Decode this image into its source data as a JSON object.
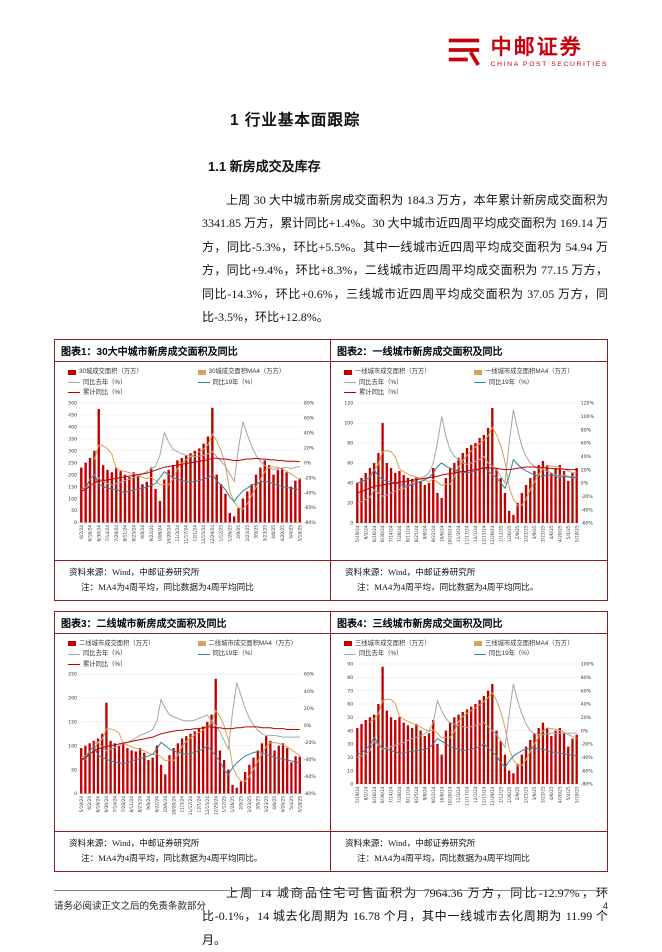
{
  "brand": {
    "name_cn": "中邮证券",
    "name_en": "CHINA POST SECURITIES",
    "accent": "#C8000A"
  },
  "headings": {
    "h1": "1 行业基本面跟踪",
    "h2": "1.1 新房成交及库存"
  },
  "paragraphs": {
    "p1": "上周 30 大中城市新房成交面积为 184.3 万方，本年累计新房成交面积为 3341.85 万方，累计同比+1.4%。30 大中城市近四周平均成交面积为 169.14 万方，同比-5.3%，环比+5.5%。其中一线城市近四周平均成交面积为 54.94 万方，同比+9.4%，环比+8.3%，二线城市近四周平均成交面积为 77.15 万方，同比-14.3%，环比+0.6%，三线城市近四周平均成交面积为 37.05 万方，同比-3.5%，环比+12.8%。",
    "p2": "上周 14 城商品住宅可售面积为 7964.36 万方，同比-12.97%，环比-0.1%，14 城去化周期为 16.78 个月，其中一线城市去化周期为 11.99 个月。"
  },
  "footer": {
    "disclaimer": "请务必阅读正文之后的免责条款部分",
    "page": "4"
  },
  "chart_data": [
    {
      "type": "bar",
      "title": "图表1：30大中城市新房成交面积及同比",
      "source": "资料来源：Wind，中邮证券研究所",
      "note": "注：MA4为4周平均，同比数据为4周平均同比",
      "x_labels": [
        "6/2/24",
        "6/16/24",
        "6/30/24",
        "7/14/24",
        "7/28/24",
        "8/11/24",
        "8/25/24",
        "9/8/24",
        "9/22/24",
        "10/6/24",
        "10/20/24",
        "11/3/24",
        "11/17/24",
        "12/1/24",
        "12/15/24",
        "12/29/24",
        "1/12/25",
        "1/26/25",
        "2/9/25",
        "2/23/25",
        "3/9/25",
        "3/23/25",
        "4/6/25",
        "4/20/25",
        "5/4/25",
        "5/18/25"
      ],
      "label_every": 2,
      "ylim_left": [
        0,
        500
      ],
      "ytick_left": 50,
      "ylim_right": [
        -80,
        80
      ],
      "ytick_right": 20,
      "bars": {
        "name": "30城成交面积（万方）",
        "color": "#C00000",
        "values": [
          230,
          250,
          270,
          300,
          475,
          240,
          220,
          210,
          230,
          215,
          200,
          190,
          210,
          195,
          160,
          170,
          230,
          140,
          90,
          180,
          220,
          240,
          260,
          270,
          280,
          290,
          300,
          310,
          330,
          360,
          480,
          200,
          160,
          120,
          40,
          25,
          60,
          100,
          130,
          160,
          200,
          230,
          260,
          240,
          200,
          220,
          230,
          210,
          150,
          175,
          184
        ]
      },
      "ma4": {
        "name": "30城成交面积MA4（万方）",
        "color": "#D8A158"
      },
      "lines": [
        {
          "name": "同比去年（%）",
          "color": "#A6A6A6",
          "values": [
            -35,
            -33,
            -30,
            -28,
            -20,
            -25,
            -28,
            -30,
            -28,
            -26,
            -24,
            -22,
            -20,
            -18,
            -15,
            -12,
            -8,
            -5,
            10,
            40,
            28,
            18,
            15,
            12,
            10,
            9,
            8,
            9,
            10,
            12,
            15,
            8,
            2,
            -5,
            -15,
            -25,
            20,
            55,
            38,
            22,
            10,
            2,
            -4,
            -7,
            -9,
            -8,
            -7,
            -6,
            -8,
            -6,
            -5
          ]
        },
        {
          "name": "同比19年（%）",
          "color": "#31859C",
          "values": [
            -35,
            -34,
            -22,
            -16,
            -28,
            -32,
            -34,
            -35,
            -36,
            -38,
            -40,
            -38,
            -36,
            -35,
            -34,
            -33,
            -30,
            -28,
            -20,
            -12,
            -16,
            -20,
            -22,
            -24,
            -25,
            -26,
            -25,
            -24,
            -22,
            -20,
            -16,
            -24,
            -30,
            -36,
            -46,
            -52,
            -44,
            -38,
            -34,
            -30,
            -28,
            -26,
            -25,
            -26,
            -28,
            -30,
            -32,
            -33,
            -34,
            -35,
            -36
          ]
        },
        {
          "name": "累计同比（%）",
          "color": "#C00000",
          "values": [
            -38,
            -36,
            -31,
            -27,
            -25,
            -24,
            -23,
            -22,
            -21,
            -20,
            -19,
            -18,
            -17,
            -16,
            -15,
            -14,
            -12,
            -10,
            -8,
            -6,
            -5,
            -4,
            -3,
            -2,
            -1,
            0,
            1,
            2,
            3,
            4,
            6,
            6,
            5,
            5,
            4,
            3,
            3,
            4,
            5,
            5,
            6,
            5,
            5,
            4,
            4,
            3,
            3,
            2,
            2,
            2,
            1.4
          ]
        }
      ]
    },
    {
      "type": "bar",
      "title": "图表2：一线城市新房成交面积及同比",
      "source": "资料来源：Wind，中邮证券研究所",
      "note": "注：MA4为4周平均，同比数据为4周平均同比。",
      "x_labels": [
        "5/19/24",
        "6/2/24",
        "6/16/24",
        "6/30/24",
        "7/14/24",
        "7/28/24",
        "8/11/24",
        "8/25/24",
        "9/8/24",
        "9/22/24",
        "10/6/24",
        "10/20/24",
        "11/3/24",
        "11/17/24",
        "12/1/24",
        "12/15/24",
        "12/29/24",
        "1/12/25",
        "1/26/25",
        "2/9/25",
        "2/23/25",
        "3/9/25",
        "3/23/25",
        "4/6/25",
        "4/20/25",
        "5/4/25",
        "5/18/25"
      ],
      "label_every": 2,
      "ylim_left": [
        0,
        120
      ],
      "ytick_left": 20,
      "ylim_right": [
        -60,
        120
      ],
      "ytick_right": 20,
      "bars": {
        "name": "一线城市成交面积（万方）",
        "color": "#C00000",
        "values": [
          40,
          45,
          50,
          55,
          60,
          70,
          100,
          60,
          55,
          50,
          52,
          48,
          45,
          44,
          46,
          42,
          38,
          40,
          55,
          30,
          25,
          45,
          55,
          60,
          65,
          70,
          75,
          78,
          80,
          85,
          88,
          95,
          115,
          55,
          45,
          30,
          12,
          8,
          20,
          30,
          38,
          45,
          52,
          58,
          62,
          58,
          50,
          55,
          58,
          52,
          42,
          50,
          55
        ]
      },
      "ma4": {
        "name": "一线城市成交面积MA4（万方）",
        "color": "#D8A158"
      },
      "lines": [
        {
          "name": "同比去年（%）",
          "color": "#A6A6A6",
          "values": [
            -30,
            -28,
            -25,
            -22,
            -10,
            -15,
            -20,
            -18,
            -15,
            -12,
            -10,
            -8,
            -5,
            0,
            5,
            8,
            10,
            15,
            30,
            60,
            100,
            70,
            50,
            40,
            35,
            30,
            28,
            30,
            32,
            35,
            40,
            30,
            25,
            20,
            10,
            0,
            60,
            110,
            80,
            55,
            40,
            30,
            25,
            22,
            20,
            18,
            15,
            12,
            10,
            12,
            10,
            9,
            9
          ]
        },
        {
          "name": "同比19年（%）",
          "color": "#31859C",
          "values": [
            0,
            2,
            5,
            8,
            20,
            10,
            5,
            3,
            2,
            0,
            -2,
            -4,
            -5,
            -3,
            0,
            2,
            5,
            8,
            15,
            25,
            30,
            25,
            22,
            20,
            18,
            16,
            15,
            16,
            18,
            20,
            25,
            18,
            12,
            8,
            0,
            -8,
            10,
            35,
            28,
            22,
            18,
            15,
            12,
            10,
            10,
            12,
            12,
            10,
            8,
            10,
            9,
            8,
            8
          ]
        },
        {
          "name": "累计同比（%）",
          "color": "#C00000",
          "values": [
            -15,
            -13,
            -10,
            -8,
            -5,
            -4,
            -3,
            -2,
            -1,
            0,
            1,
            2,
            3,
            4,
            5,
            6,
            7,
            8,
            9,
            10,
            12,
            13,
            14,
            15,
            16,
            17,
            18,
            19,
            20,
            21,
            23,
            23,
            22,
            22,
            21,
            20,
            20,
            21,
            22,
            23,
            24,
            24,
            24,
            23,
            23,
            22,
            22,
            21,
            21,
            21,
            20,
            20,
            20
          ]
        }
      ]
    },
    {
      "type": "bar",
      "title": "图表3：二线城市新房成交面积及同比",
      "source": "资料来源：Wind，中邮证券研究所",
      "note": "注：MA4为4周平均，同比数据为4周平均同比。",
      "x_labels": [
        "5/19/24",
        "6/2/24",
        "6/16/24",
        "6/30/24",
        "7/14/24",
        "7/28/24",
        "8/11/24",
        "8/25/24",
        "9/8/24",
        "9/22/24",
        "10/6/24",
        "10/20/24",
        "11/3/24",
        "11/17/24",
        "12/1/24",
        "12/15/24",
        "12/29/24",
        "1/12/25",
        "1/26/25",
        "2/9/25",
        "2/23/25",
        "3/9/25",
        "3/23/25",
        "4/6/25",
        "4/20/25",
        "5/4/25",
        "5/18/25"
      ],
      "label_every": 2,
      "ylim_left": [
        0,
        250
      ],
      "ytick_left": 50,
      "ylim_right": [
        -80,
        60
      ],
      "ytick_right": 20,
      "bars": {
        "name": "二线城市成交面积（万方）",
        "color": "#C00000",
        "values": [
          95,
          100,
          105,
          110,
          115,
          125,
          190,
          110,
          105,
          100,
          105,
          95,
          90,
          88,
          95,
          85,
          70,
          75,
          100,
          60,
          40,
          80,
          95,
          105,
          115,
          120,
          125,
          130,
          135,
          140,
          150,
          165,
          240,
          90,
          70,
          50,
          18,
          12,
          25,
          45,
          60,
          75,
          90,
          105,
          120,
          110,
          90,
          100,
          105,
          95,
          65,
          78,
          77
        ]
      },
      "ma4": {
        "name": "二线城市成交面积MA4（万方）",
        "color": "#D8A158"
      },
      "lines": [
        {
          "name": "同比去年（%）",
          "color": "#A6A6A6",
          "values": [
            -38,
            -36,
            -33,
            -30,
            -20,
            -25,
            -30,
            -28,
            -26,
            -24,
            -22,
            -20,
            -18,
            -15,
            -12,
            -10,
            -8,
            -5,
            5,
            30,
            20,
            12,
            10,
            8,
            6,
            5,
            5,
            6,
            8,
            10,
            12,
            5,
            0,
            -8,
            -18,
            -28,
            15,
            50,
            35,
            20,
            8,
            0,
            -6,
            -10,
            -12,
            -12,
            -12,
            -13,
            -14,
            -14,
            -14,
            -14,
            -14
          ]
        },
        {
          "name": "同比19年（%）",
          "color": "#31859C",
          "values": [
            -40,
            -40,
            -30,
            -25,
            -35,
            -38,
            -40,
            -42,
            -43,
            -44,
            -45,
            -44,
            -42,
            -40,
            -39,
            -38,
            -36,
            -34,
            -28,
            -20,
            -24,
            -28,
            -30,
            -32,
            -33,
            -34,
            -33,
            -32,
            -30,
            -28,
            -24,
            -30,
            -36,
            -42,
            -52,
            -58,
            -50,
            -44,
            -40,
            -36,
            -34,
            -32,
            -31,
            -32,
            -34,
            -36,
            -38,
            -39,
            -40,
            -41,
            -42,
            -43,
            -44
          ]
        },
        {
          "name": "累计同比（%）",
          "color": "#C00000",
          "values": [
            -40,
            -38,
            -34,
            -30,
            -28,
            -26,
            -25,
            -24,
            -23,
            -22,
            -21,
            -20,
            -19,
            -18,
            -17,
            -16,
            -15,
            -14,
            -12,
            -10,
            -9,
            -8,
            -7,
            -6,
            -6,
            -5,
            -5,
            -4,
            -4,
            -3,
            -2,
            -2,
            -3,
            -3,
            -4,
            -4,
            -4,
            -3,
            -3,
            -2,
            -2,
            -2,
            -2,
            -3,
            -3,
            -3,
            -4,
            -4,
            -4,
            -5,
            -5,
            -5,
            -5
          ]
        }
      ]
    },
    {
      "type": "bar",
      "title": "图表4：三线城市新房成交面积及同比",
      "source": "资料来源：Wind，中邮证券研究所",
      "note": "注：MA4为4周平均，同比数据为4周平均同比",
      "x_labels": [
        "5/19/24",
        "6/2/24",
        "6/16/24",
        "6/30/24",
        "7/14/24",
        "7/28/24",
        "8/11/24",
        "8/25/24",
        "9/8/24",
        "9/22/24",
        "10/6/24",
        "10/20/24",
        "11/3/24",
        "11/17/24",
        "12/1/24",
        "12/15/24",
        "12/29/24",
        "1/12/25",
        "1/26/25",
        "2/9/25",
        "2/23/25",
        "3/9/25",
        "3/23/25",
        "4/6/25",
        "4/20/25",
        "5/4/25",
        "5/18/25"
      ],
      "label_every": 2,
      "ylim_left": [
        0,
        90
      ],
      "ytick_left": 10,
      "ylim_right": [
        -80,
        100
      ],
      "ytick_right": 20,
      "bars": {
        "name": "三线城市成交面积（万方）",
        "color": "#C00000",
        "values": [
          42,
          45,
          48,
          50,
          52,
          60,
          88,
          55,
          50,
          48,
          50,
          46,
          44,
          42,
          45,
          40,
          36,
          38,
          48,
          30,
          22,
          40,
          46,
          50,
          52,
          54,
          56,
          58,
          60,
          63,
          66,
          70,
          75,
          40,
          32,
          22,
          10,
          8,
          15,
          22,
          28,
          33,
          38,
          42,
          46,
          42,
          36,
          40,
          42,
          38,
          28,
          34,
          37
        ]
      },
      "ma4": {
        "name": "三线城市成交面积MA4（万方）",
        "color": "#D8A158"
      },
      "lines": [
        {
          "name": "同比去年（%）",
          "color": "#A6A6A6",
          "values": [
            -40,
            -38,
            -35,
            -30,
            -15,
            -22,
            -28,
            -26,
            -24,
            -22,
            -20,
            -18,
            -15,
            -12,
            -10,
            -8,
            -5,
            0,
            12,
            45,
            30,
            18,
            12,
            10,
            8,
            6,
            5,
            6,
            8,
            10,
            12,
            6,
            0,
            -6,
            -15,
            -25,
            25,
            70,
            45,
            25,
            10,
            0,
            -5,
            -6,
            -6,
            -5,
            -4,
            -4,
            -4,
            -4,
            -4,
            -4,
            -3.5
          ]
        },
        {
          "name": "同比19年（%）",
          "color": "#31859C",
          "values": [
            -35,
            -34,
            -28,
            -22,
            -10,
            -20,
            -26,
            -28,
            -30,
            -32,
            -34,
            -33,
            -32,
            -31,
            -30,
            -29,
            -28,
            -26,
            -20,
            -12,
            -16,
            -20,
            -24,
            -26,
            -28,
            -30,
            -29,
            -28,
            -26,
            -24,
            -20,
            -26,
            -32,
            -38,
            -48,
            -55,
            -46,
            -38,
            -34,
            -30,
            -28,
            -27,
            -26,
            -27,
            -28,
            -30,
            -32,
            -33,
            -34,
            -35,
            -36,
            -37,
            -38
          ]
        }
      ]
    }
  ]
}
